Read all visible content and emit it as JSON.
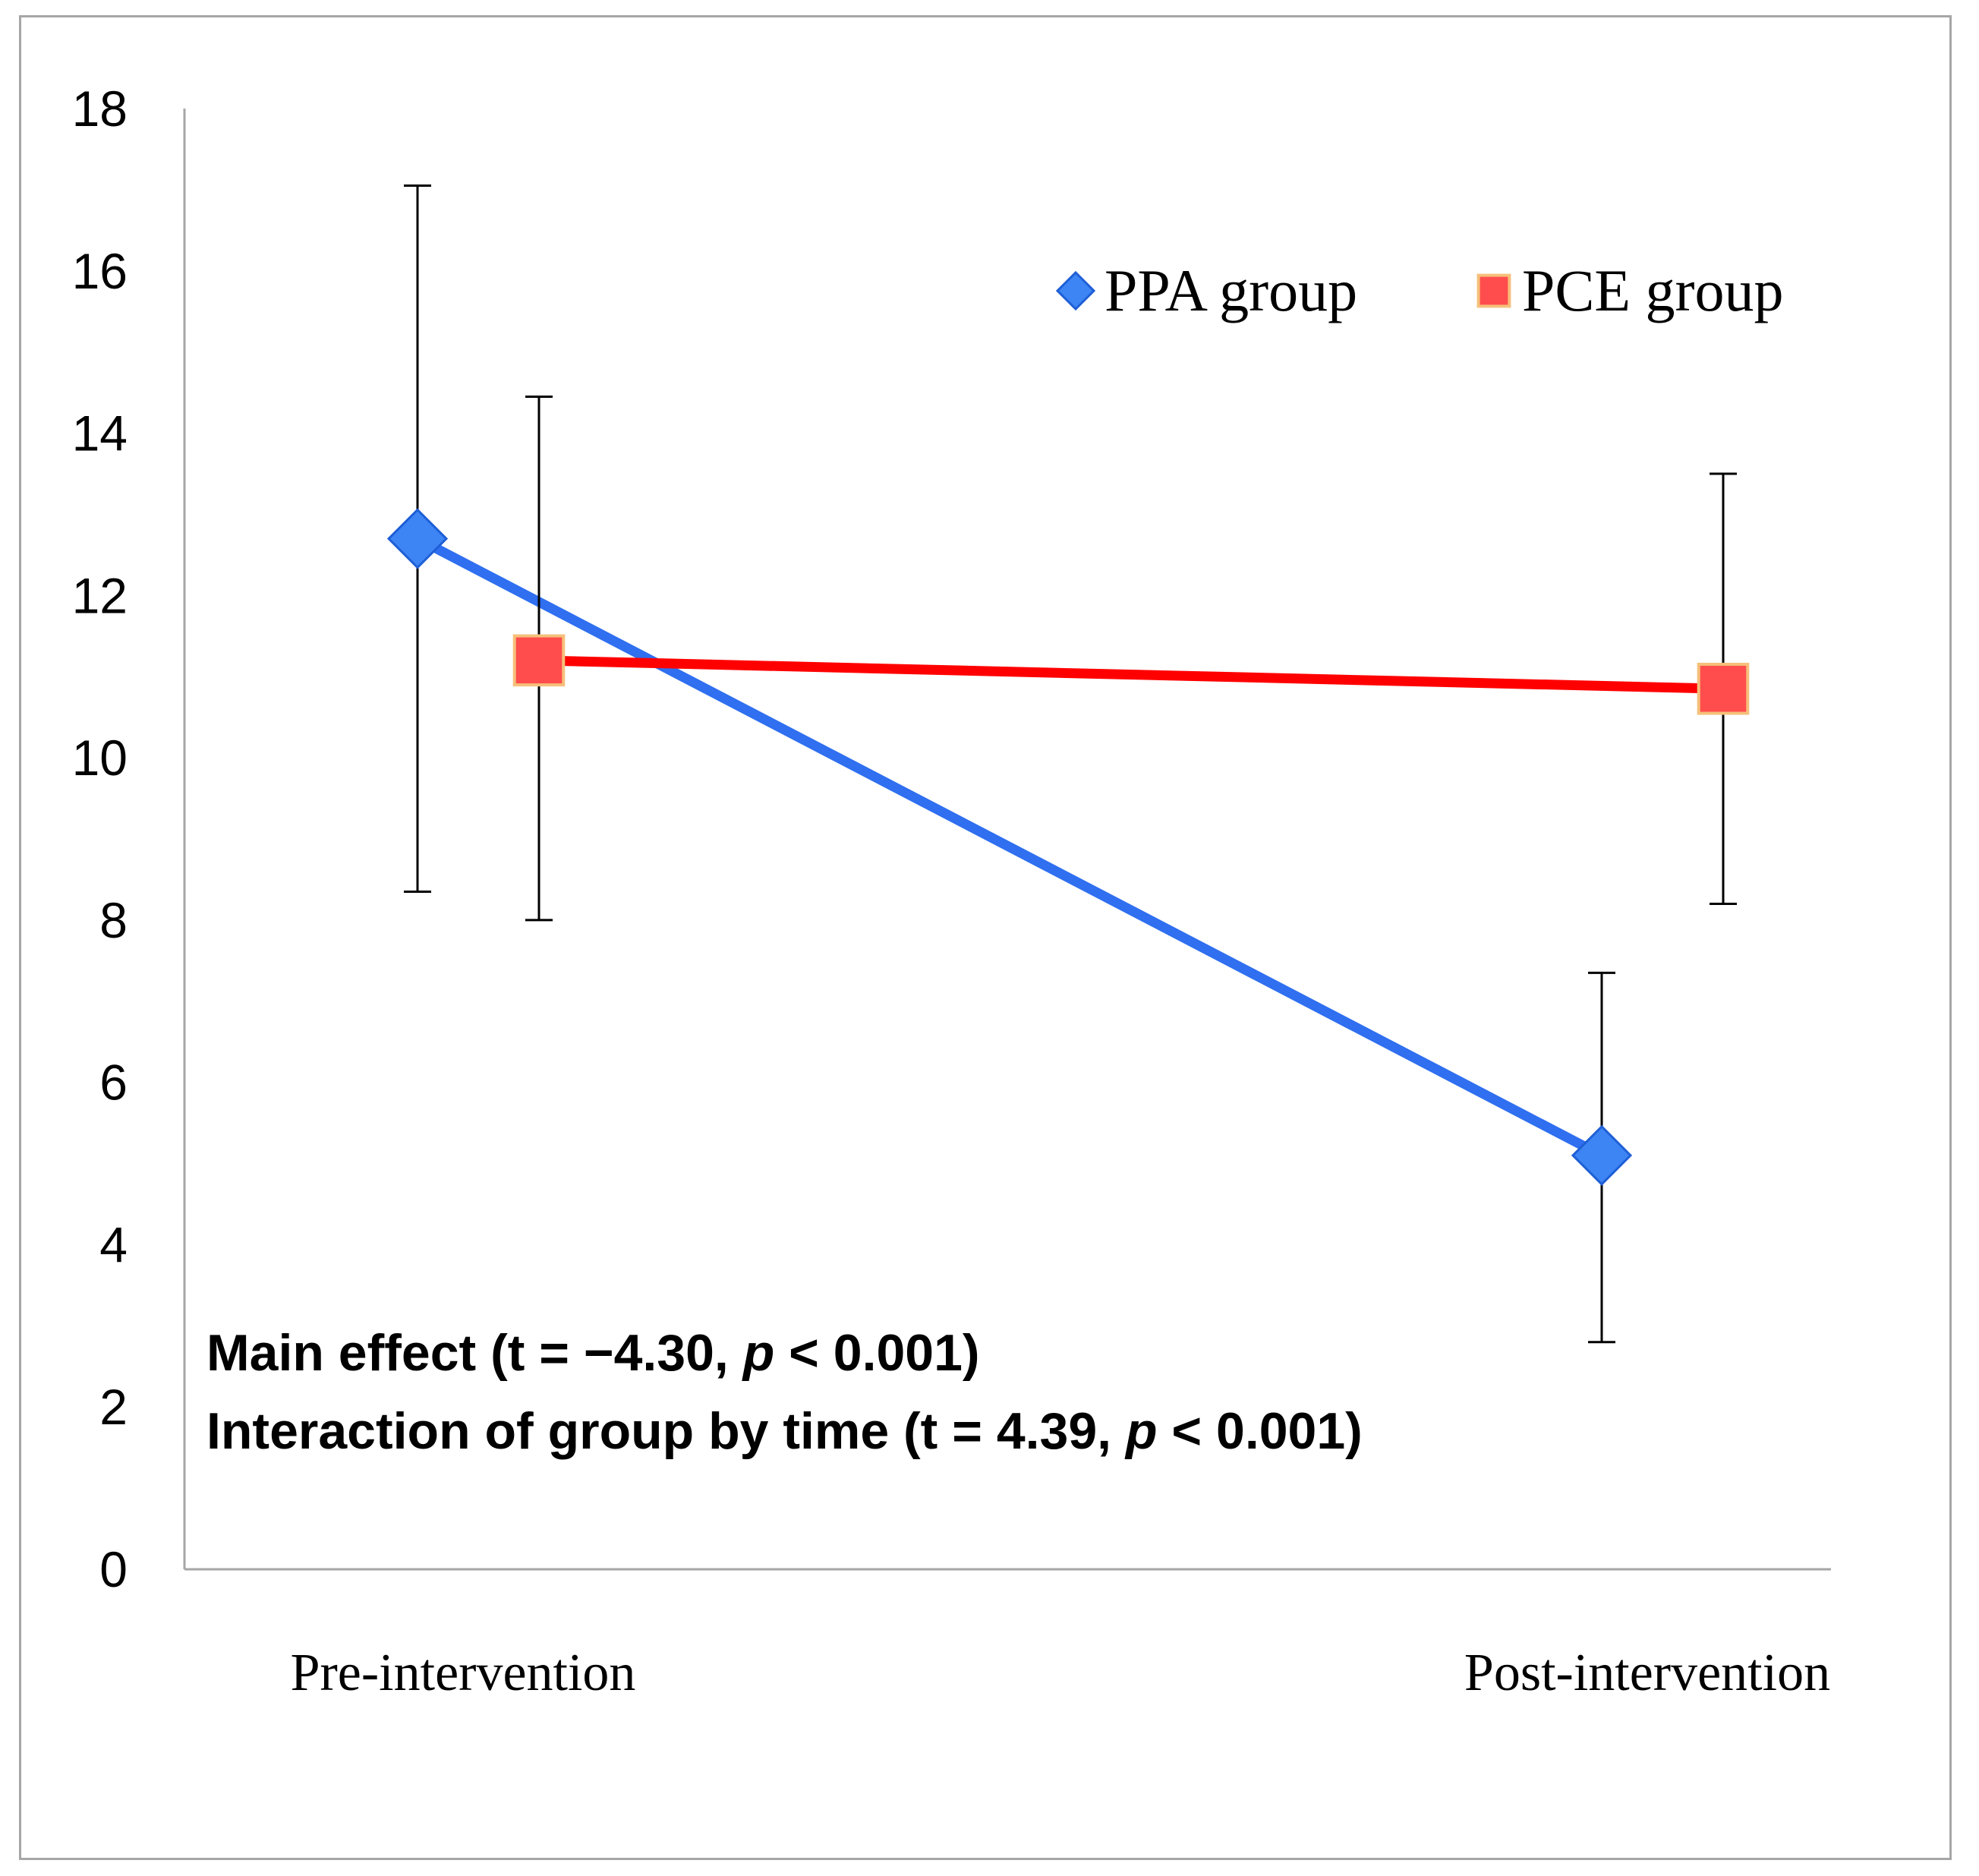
{
  "chart_data": {
    "type": "line",
    "title": "",
    "xlabel": "",
    "ylabel": "",
    "categories": [
      "Pre-intervention",
      "Post-intervention"
    ],
    "ylim": [
      0,
      18
    ],
    "yticks": [
      0,
      2,
      4,
      6,
      8,
      10,
      12,
      14,
      16,
      18
    ],
    "grid": false,
    "legend_position": "top-right",
    "series": [
      {
        "name": "PPA group",
        "marker": "diamond",
        "line_color": "#2f6ff0",
        "marker_color": "#3d85f5",
        "values": [
          12.7,
          5.1
        ],
        "error_low": [
          8.35,
          2.8
        ],
        "error_high": [
          17.05,
          7.35
        ]
      },
      {
        "name": "PCE group",
        "marker": "square",
        "line_color": "#ff0000",
        "marker_color": "#ff4d4d",
        "values": [
          11.2,
          10.85
        ],
        "error_low": [
          8.0,
          8.2
        ],
        "error_high": [
          14.45,
          13.5
        ]
      }
    ],
    "annotations": [
      {
        "prefix": "Main effect (t = −4.30, ",
        "p": "p",
        "suffix": " < 0.001)"
      },
      {
        "prefix": "Interaction of group by time (t = 4.39, ",
        "p": "p",
        "suffix": " < 0.001)"
      }
    ]
  }
}
